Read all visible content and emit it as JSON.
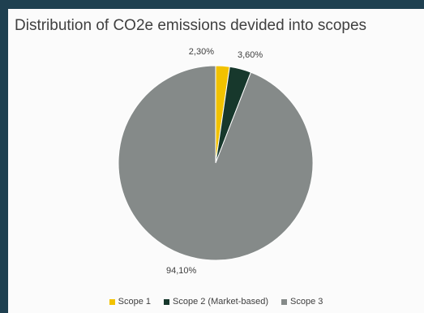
{
  "chart_data": {
    "type": "pie",
    "title": "Distribution of CO2e emissions devided into scopes",
    "categories": [
      "Scope 1",
      "Scope 2 (Market-based)",
      "Scope 3"
    ],
    "values": [
      2.3,
      3.6,
      94.1
    ],
    "data_labels": [
      "2,30%",
      "3,60%",
      "94,10%"
    ],
    "colors": [
      "#f2c200",
      "#17382c",
      "#858a89"
    ],
    "legend_position": "bottom",
    "start_angle_deg": 0,
    "direction": "clockwise"
  }
}
